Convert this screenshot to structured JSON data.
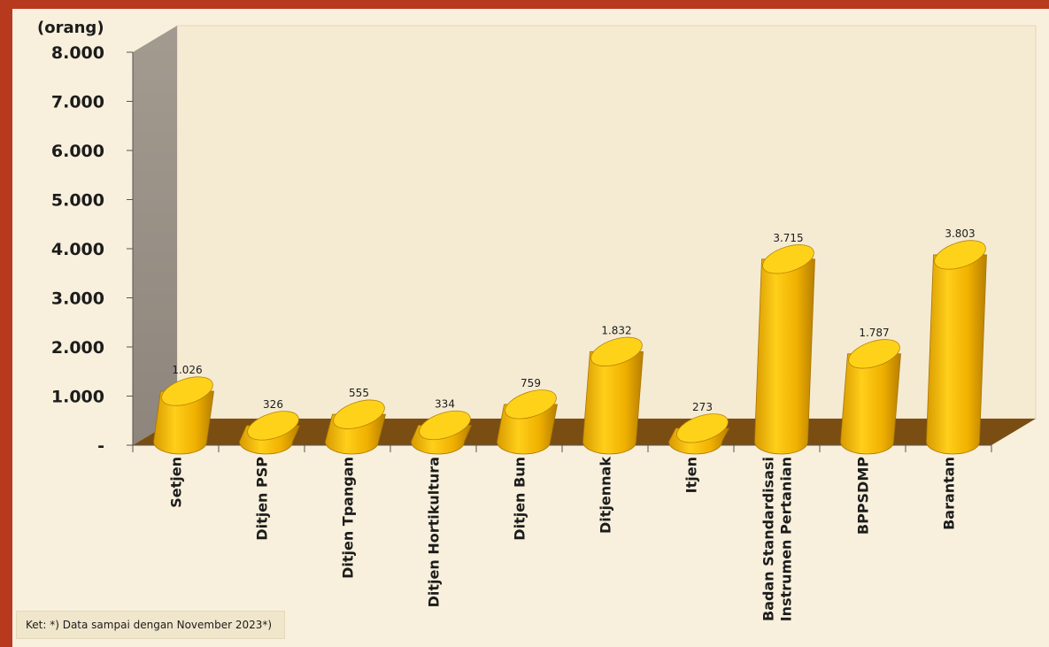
{
  "chart_data": {
    "type": "bar",
    "unit_label": "(orang)",
    "categories": [
      [
        "Setjen"
      ],
      [
        "Ditjen PSP"
      ],
      [
        "Ditjen Tpangan"
      ],
      [
        "Ditjen Hortikultura"
      ],
      [
        "Ditjen Bun"
      ],
      [
        "Ditjennak"
      ],
      [
        "Itjen"
      ],
      [
        "Badan Standardisasi",
        "Instrumen Pertanian"
      ],
      [
        "BPPSDMP"
      ],
      [
        "Barantan"
      ]
    ],
    "values": [
      1026,
      326,
      555,
      334,
      759,
      1832,
      273,
      3715,
      1787,
      3803
    ],
    "value_labels": [
      "1.026",
      "326",
      "555",
      "334",
      "759",
      "1.832",
      "273",
      "3.715",
      "1.787",
      "3.803"
    ],
    "y_ticks": [
      "-",
      "1.000",
      "2.000",
      "3.000",
      "4.000",
      "5.000",
      "6.000",
      "7.000",
      "8.000"
    ],
    "ylim": [
      0,
      8000
    ],
    "grid": false,
    "legend": "none",
    "colors": {
      "bar_front": "#f4b800",
      "bar_top": "#ffd21a",
      "floor": "#7a4e12",
      "back_wall": "#f5ebd3",
      "side_wall": "#9a9088",
      "frame": "#b83a1e"
    }
  },
  "note": "Ket: *) Data sampai dengan November 2023*)"
}
